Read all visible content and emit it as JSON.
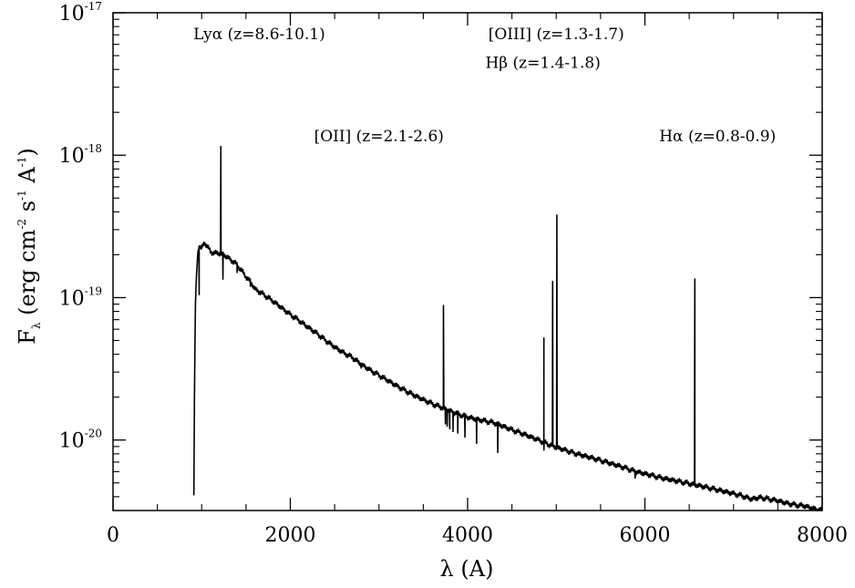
{
  "chart_data": {
    "type": "line",
    "title": "",
    "xlabel": "λ (A)",
    "ylabel": {
      "base": "F",
      "sub": "λ",
      "text1": " (erg cm",
      "sup1": "-2",
      "text2": " s",
      "sup2": "-1",
      "text3": " A",
      "sup3": "-1",
      "text4": ")"
    },
    "xlim": [
      0,
      8000
    ],
    "ylim": [
      3.2e-21,
      1e-17
    ],
    "yscale": "log",
    "grid": false,
    "x_ticks": [
      {
        "value": 0,
        "label": "0"
      },
      {
        "value": 2000,
        "label": "2000"
      },
      {
        "value": 4000,
        "label": "4000"
      },
      {
        "value": 6000,
        "label": "6000"
      },
      {
        "value": 8000,
        "label": "8000"
      }
    ],
    "x_minor_step": 500,
    "y_ticks": [
      {
        "value": 1e-20,
        "base": "10",
        "exp": "-20"
      },
      {
        "value": 1e-19,
        "base": "10",
        "exp": "-19"
      },
      {
        "value": 1e-18,
        "base": "10",
        "exp": "-18"
      },
      {
        "value": 1e-17,
        "base": "10",
        "exp": "-17"
      }
    ],
    "annotations": [
      {
        "text": "Lyα (z=8.6-10.1)",
        "x": 1650,
        "y": 6.5e-18
      },
      {
        "text": "[OIII] (z=1.3-1.7)",
        "x": 5000,
        "y": 6.5e-18
      },
      {
        "text": "Hβ (z=1.4-1.8)",
        "x": 4850,
        "y": 4.1e-18
      },
      {
        "text": "[OII] (z=2.1-2.6)",
        "x": 3000,
        "y": 1.25e-18
      },
      {
        "text": "Hα (z=0.8-0.9)",
        "x": 6820,
        "y": 1.25e-18
      }
    ],
    "series": [
      {
        "color": "#000000",
        "continuum": [
          [
            912,
            4.2e-21
          ],
          [
            920,
            3e-20
          ],
          [
            930,
            9e-20
          ],
          [
            945,
            1.6e-19
          ],
          [
            960,
            2.2e-19
          ],
          [
            975,
            2.3e-19
          ],
          [
            1000,
            2.2e-19
          ],
          [
            1030,
            2.45e-19
          ],
          [
            1060,
            2.3e-19
          ],
          [
            1100,
            2.1e-19
          ],
          [
            1150,
            2.05e-19
          ],
          [
            1200,
            2.05e-19
          ],
          [
            1250,
            2e-19
          ],
          [
            1300,
            1.9e-19
          ],
          [
            1350,
            1.8e-19
          ],
          [
            1400,
            1.7e-19
          ],
          [
            1450,
            1.55e-19
          ],
          [
            1500,
            1.4e-19
          ],
          [
            1550,
            1.3e-19
          ],
          [
            1600,
            1.15e-19
          ],
          [
            1700,
            1.05e-19
          ],
          [
            1800,
            9.5e-20
          ],
          [
            1900,
            8.5e-20
          ],
          [
            2000,
            7.6e-20
          ],
          [
            2100,
            6.9e-20
          ],
          [
            2200,
            6.2e-20
          ],
          [
            2300,
            5.6e-20
          ],
          [
            2400,
            5e-20
          ],
          [
            2500,
            4.5e-20
          ],
          [
            2600,
            4.1e-20
          ],
          [
            2700,
            3.8e-20
          ],
          [
            2800,
            3.4e-20
          ],
          [
            2900,
            3.1e-20
          ],
          [
            3000,
            2.85e-20
          ],
          [
            3100,
            2.62e-20
          ],
          [
            3200,
            2.4e-20
          ],
          [
            3300,
            2.22e-20
          ],
          [
            3400,
            2.06e-20
          ],
          [
            3500,
            1.92e-20
          ],
          [
            3600,
            1.8e-20
          ],
          [
            3700,
            1.7e-20
          ],
          [
            3800,
            1.6e-20
          ],
          [
            3900,
            1.52e-20
          ],
          [
            4000,
            1.45e-20
          ],
          [
            4100,
            1.4e-20
          ],
          [
            4200,
            1.36e-20
          ],
          [
            4300,
            1.32e-20
          ],
          [
            4400,
            1.25e-20
          ],
          [
            4500,
            1.18e-20
          ],
          [
            4600,
            1.12e-20
          ],
          [
            4700,
            1.06e-20
          ],
          [
            4800,
            1e-20
          ],
          [
            4900,
            9.4e-21
          ],
          [
            5000,
            8.9e-21
          ],
          [
            5100,
            8.5e-21
          ],
          [
            5200,
            8.1e-21
          ],
          [
            5300,
            7.8e-21
          ],
          [
            5400,
            7.5e-21
          ],
          [
            5500,
            7.2e-21
          ],
          [
            5600,
            6.9e-21
          ],
          [
            5700,
            6.6e-21
          ],
          [
            5800,
            6.3e-21
          ],
          [
            5900,
            6e-21
          ],
          [
            6000,
            5.8e-21
          ],
          [
            6100,
            5.6e-21
          ],
          [
            6200,
            5.4e-21
          ],
          [
            6300,
            5.25e-21
          ],
          [
            6400,
            5.1e-21
          ],
          [
            6500,
            4.95e-21
          ],
          [
            6600,
            4.8e-21
          ],
          [
            6700,
            4.65e-21
          ],
          [
            6800,
            4.5e-21
          ],
          [
            6900,
            4.35e-21
          ],
          [
            7000,
            4.2e-21
          ],
          [
            7100,
            4.05e-21
          ],
          [
            7200,
            3.85e-21
          ],
          [
            7300,
            3.95e-21
          ],
          [
            7400,
            3.85e-21
          ],
          [
            7500,
            3.75e-21
          ],
          [
            7600,
            3.6e-21
          ],
          [
            7700,
            3.5e-21
          ],
          [
            7800,
            3.45e-21
          ],
          [
            7900,
            3.3e-21
          ],
          [
            8000,
            3.2e-21
          ]
        ],
        "emission_lines": [
          {
            "x": 1216,
            "peak": 1.15e-18,
            "width": 6
          },
          {
            "x": 3727,
            "peak": 8.8e-20,
            "width": 5
          },
          {
            "x": 4861,
            "peak": 5.2e-20,
            "width": 4
          },
          {
            "x": 4959,
            "peak": 1.3e-19,
            "width": 4
          },
          {
            "x": 5007,
            "peak": 3.8e-19,
            "width": 4
          },
          {
            "x": 6563,
            "peak": 1.35e-19,
            "width": 5
          }
        ],
        "absorption_lines": [
          {
            "x": 972,
            "depth": 1.05e-19
          },
          {
            "x": 1240,
            "depth": 1.35e-19
          },
          {
            "x": 1400,
            "depth": 1.5e-19
          },
          {
            "x": 1550,
            "depth": 1.2e-19
          },
          {
            "x": 2800,
            "depth": 3.2e-20
          },
          {
            "x": 3750,
            "depth": 1.3e-20
          },
          {
            "x": 3770,
            "depth": 1.25e-20
          },
          {
            "x": 3798,
            "depth": 1.2e-20
          },
          {
            "x": 3835,
            "depth": 1.15e-20
          },
          {
            "x": 3889,
            "depth": 1.12e-20
          },
          {
            "x": 3970,
            "depth": 1.05e-20
          },
          {
            "x": 4102,
            "depth": 9.5e-21
          },
          {
            "x": 4340,
            "depth": 8.2e-21
          },
          {
            "x": 4861,
            "depth": 8.5e-21
          },
          {
            "x": 5890,
            "depth": 5.4e-21
          }
        ]
      }
    ]
  }
}
